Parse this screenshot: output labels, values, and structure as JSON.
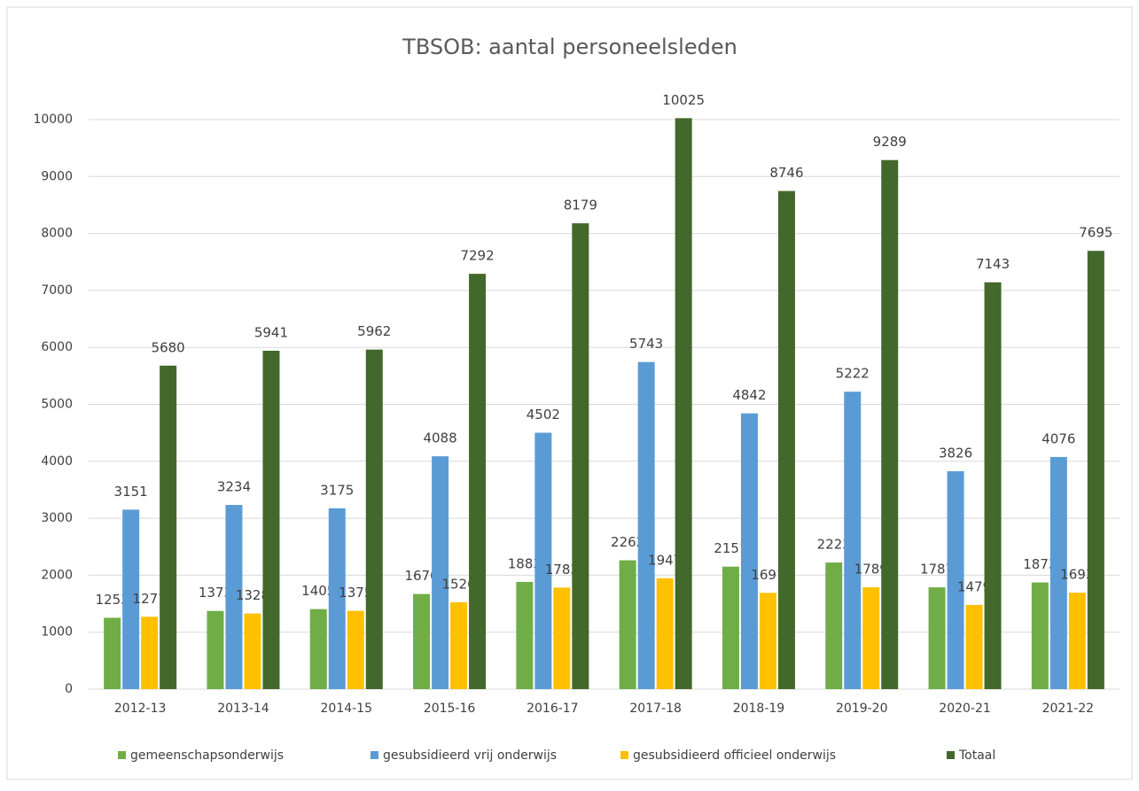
{
  "chart_data": {
    "type": "bar",
    "title": "TBSOB: aantal personeelsleden",
    "categories": [
      "2012-13",
      "2013-14",
      "2014-15",
      "2015-16",
      "2016-17",
      "2017-18",
      "2018-19",
      "2019-20",
      "2020-21",
      "2021-22"
    ],
    "series": [
      {
        "name": "gemeenschapsonderwijs",
        "color": "#70ad47",
        "values": [
          1253,
          1373,
          1405,
          1670,
          1883,
          2262,
          2151,
          2223,
          1787,
          1873
        ]
      },
      {
        "name": "gesubsidieerd vrij onderwijs",
        "color": "#5b9bd5",
        "values": [
          3151,
          3234,
          3175,
          4088,
          4502,
          5743,
          4842,
          5222,
          3826,
          4076
        ]
      },
      {
        "name": "gesubsidieerd officieel onderwijs",
        "color": "#ffc000",
        "values": [
          1271,
          1328,
          1375,
          1526,
          1783,
          1947,
          1691,
          1789,
          1479,
          1693
        ]
      },
      {
        "name": "Totaal",
        "color": "#43682b",
        "values": [
          5680,
          5941,
          5962,
          7292,
          8179,
          10025,
          8746,
          9289,
          7143,
          7695
        ]
      }
    ],
    "ylim": [
      0,
      10000
    ],
    "yticks": [
      0,
      1000,
      2000,
      3000,
      4000,
      5000,
      6000,
      7000,
      8000,
      9000,
      10000
    ],
    "grid": true,
    "legend": "bottom"
  }
}
